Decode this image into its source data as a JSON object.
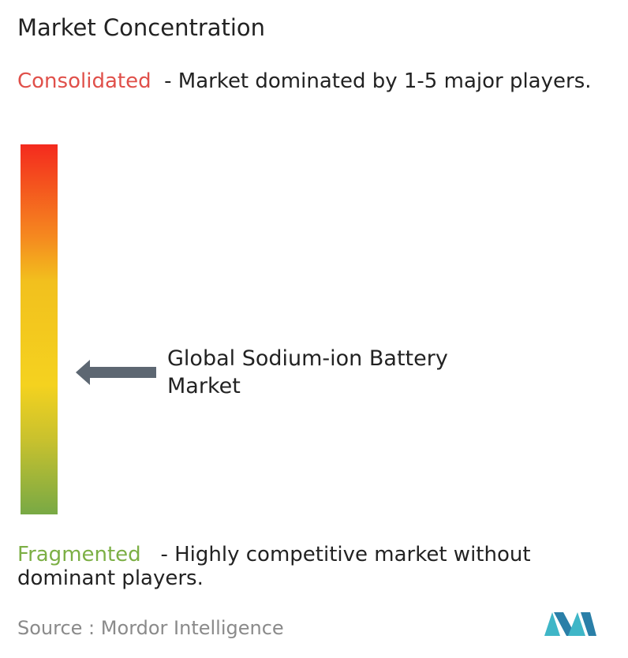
{
  "title": "Market Concentration",
  "consolidated": {
    "label": "Consolidated",
    "description": "- Market dominated by 1-5 major players."
  },
  "marker": {
    "label": "Global Sodium-ion Battery Market"
  },
  "fragmented": {
    "label": "Fragmented",
    "description": "- Highly competitive market without dominant players."
  },
  "source": {
    "label": "Source :",
    "name": "Mordor Intelligence"
  }
}
